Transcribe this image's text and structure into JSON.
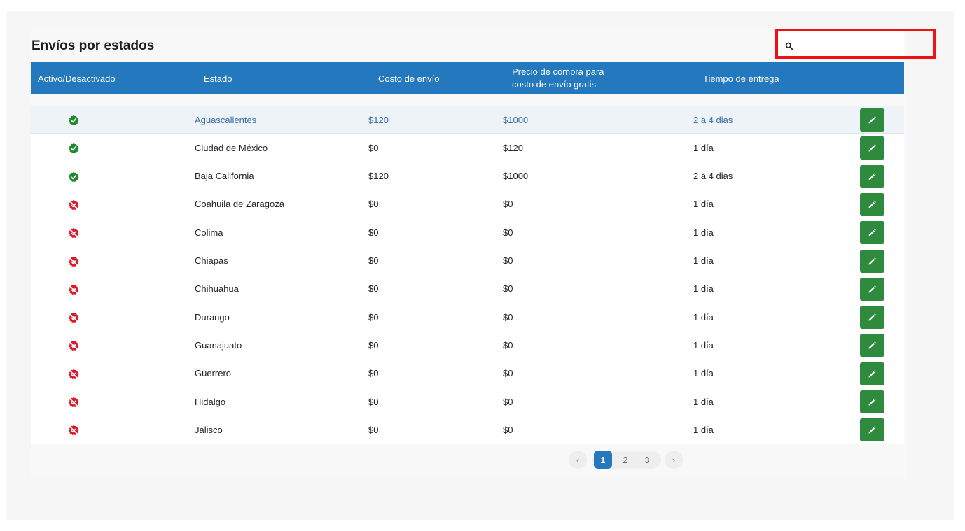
{
  "page": {
    "title": "Envíos por estados"
  },
  "search": {
    "placeholder": "",
    "value": "",
    "icon": "search-icon"
  },
  "table": {
    "headers": {
      "active": "Activo/Desactivado",
      "estado": "Estado",
      "costo": "Costo de envío",
      "precio_line1": "Precio de compra para",
      "precio_line2": "costo de envío gratis",
      "tiempo": "Tiempo de entrega"
    },
    "rows": [
      {
        "active": true,
        "estado": "Aguascalientes",
        "costo": "$120",
        "precio": "$1000",
        "tiempo": "2 a 4 dias",
        "highlighted": true
      },
      {
        "active": true,
        "estado": "Ciudad de México",
        "costo": "$0",
        "precio": "$120",
        "tiempo": "1 día"
      },
      {
        "active": true,
        "estado": "Baja California",
        "costo": "$120",
        "precio": "$1000",
        "tiempo": "2 a 4 dias"
      },
      {
        "active": false,
        "estado": "Coahuila de Zaragoza",
        "costo": "$0",
        "precio": "$0",
        "tiempo": "1 día"
      },
      {
        "active": false,
        "estado": "Colima",
        "costo": "$0",
        "precio": "$0",
        "tiempo": "1 día"
      },
      {
        "active": false,
        "estado": "Chiapas",
        "costo": "$0",
        "precio": "$0",
        "tiempo": "1 día"
      },
      {
        "active": false,
        "estado": "Chihuahua",
        "costo": "$0",
        "precio": "$0",
        "tiempo": "1 día"
      },
      {
        "active": false,
        "estado": "Durango",
        "costo": "$0",
        "precio": "$0",
        "tiempo": "1 día"
      },
      {
        "active": false,
        "estado": "Guanajuato",
        "costo": "$0",
        "precio": "$0",
        "tiempo": "1 día"
      },
      {
        "active": false,
        "estado": "Guerrero",
        "costo": "$0",
        "precio": "$0",
        "tiempo": "1 día"
      },
      {
        "active": false,
        "estado": "Hidalgo",
        "costo": "$0",
        "precio": "$0",
        "tiempo": "1 día"
      },
      {
        "active": false,
        "estado": "Jalisco",
        "costo": "$0",
        "precio": "$0",
        "tiempo": "1 día"
      }
    ]
  },
  "pagination": {
    "prev": "‹",
    "next": "›",
    "pages": [
      "1",
      "2",
      "3"
    ],
    "current": "1"
  },
  "colors": {
    "header_bg": "#2478be",
    "active_green": "#1e8a2e",
    "inactive_red": "#e0182d",
    "edit_button": "#2e8b3e",
    "search_highlight": "#ee1111"
  }
}
